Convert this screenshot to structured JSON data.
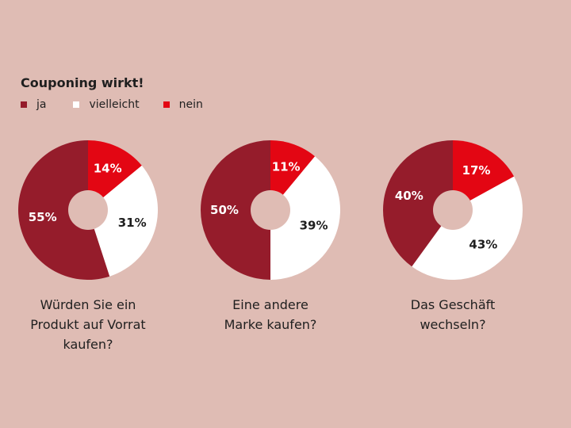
{
  "chart_data": {
    "type": "pie",
    "title": "Couponing wirkt!",
    "legend": [
      {
        "name": "ja",
        "color": "#951c2b"
      },
      {
        "name": "vielleicht",
        "color": "#ffffff"
      },
      {
        "name": "nein",
        "color": "#e30613"
      }
    ],
    "legend_position": "top-left",
    "series_order": [
      "nein",
      "vielleicht",
      "ja"
    ],
    "charts": [
      {
        "caption": "Würden Sie ein\nProdukt auf Vorrat\nkaufen?",
        "values": {
          "ja": 55,
          "vielleicht": 31,
          "nein": 14
        },
        "labels": {
          "ja": "55%",
          "vielleicht": "31%",
          "nein": "14%"
        }
      },
      {
        "caption": "Eine andere\nMarke kaufen?",
        "values": {
          "ja": 50,
          "vielleicht": 39,
          "nein": 11
        },
        "labels": {
          "ja": "50%",
          "vielleicht": "39%",
          "nein": "11%"
        }
      },
      {
        "caption": "Das Geschäft\nwechseln?",
        "values": {
          "ja": 40,
          "vielleicht": 43,
          "nein": 17
        },
        "labels": {
          "ja": "40%",
          "vielleicht": "43%",
          "nein": "17%"
        }
      }
    ]
  }
}
